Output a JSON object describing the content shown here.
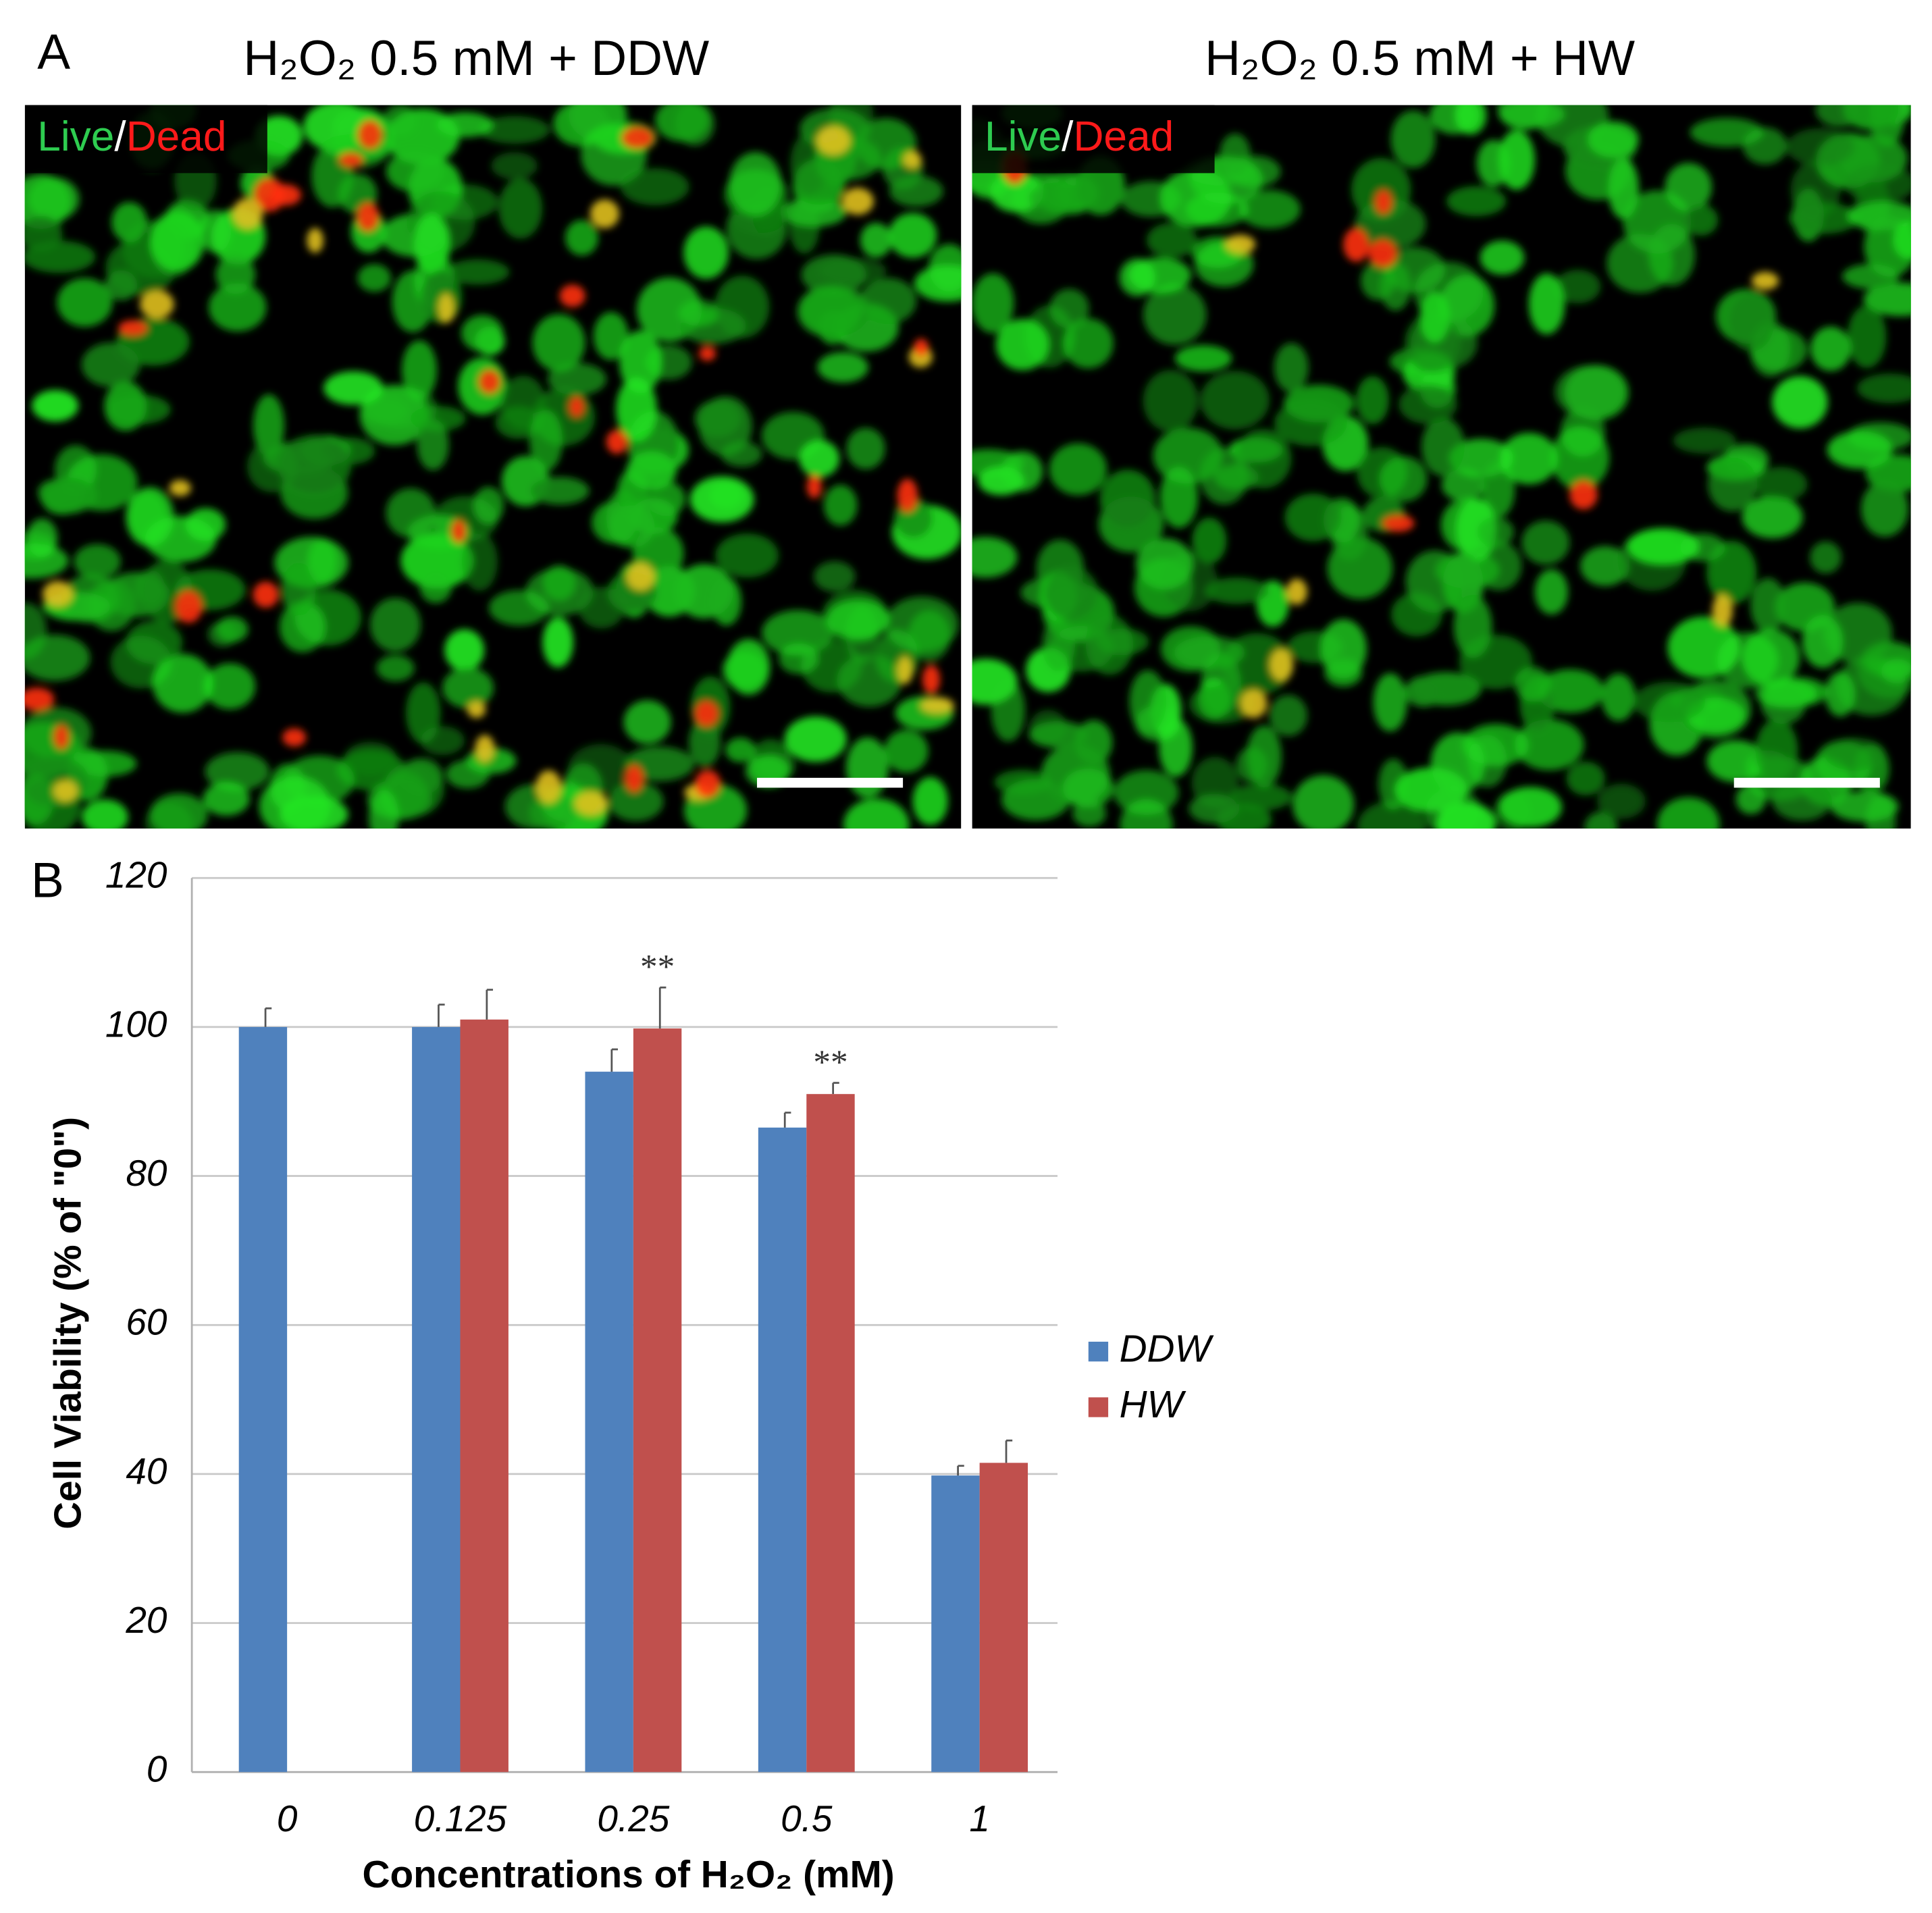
{
  "figure": {
    "panel_a_label": "A",
    "panel_b_label": "B",
    "images": [
      {
        "title": "H₂O₂  0.5 mM  + DDW",
        "live": "Live",
        "separator": "/",
        "dead": "Dead"
      },
      {
        "title": "H₂O₂  0.5 mM  + HW",
        "live": "Live",
        "separator": "/",
        "dead": "Dead"
      }
    ]
  },
  "chart_data": {
    "type": "bar",
    "x_label": "Concentrations of H₂O₂ (mM)",
    "y_label": "Cell Viability (% of \"0\")",
    "categories": [
      "0",
      "0.125",
      "0.25",
      "0.5",
      "1"
    ],
    "series": [
      {
        "name": "DDW",
        "color": "#4f81bd",
        "values": [
          100,
          100,
          94,
          86.5,
          39.8
        ],
        "errors": [
          2.5,
          3,
          3,
          2,
          1.3
        ]
      },
      {
        "name": "HW",
        "color": "#c0504d",
        "values": [
          null,
          101,
          99.8,
          91,
          41.5
        ],
        "errors": [
          null,
          4,
          5.5,
          1.5,
          3
        ],
        "significance": [
          null,
          null,
          "**",
          "**",
          null
        ]
      }
    ],
    "ylim": [
      0,
      120
    ],
    "yticks": [
      0,
      20,
      40,
      60,
      80,
      100,
      120
    ],
    "grid": true,
    "legend": "right"
  }
}
